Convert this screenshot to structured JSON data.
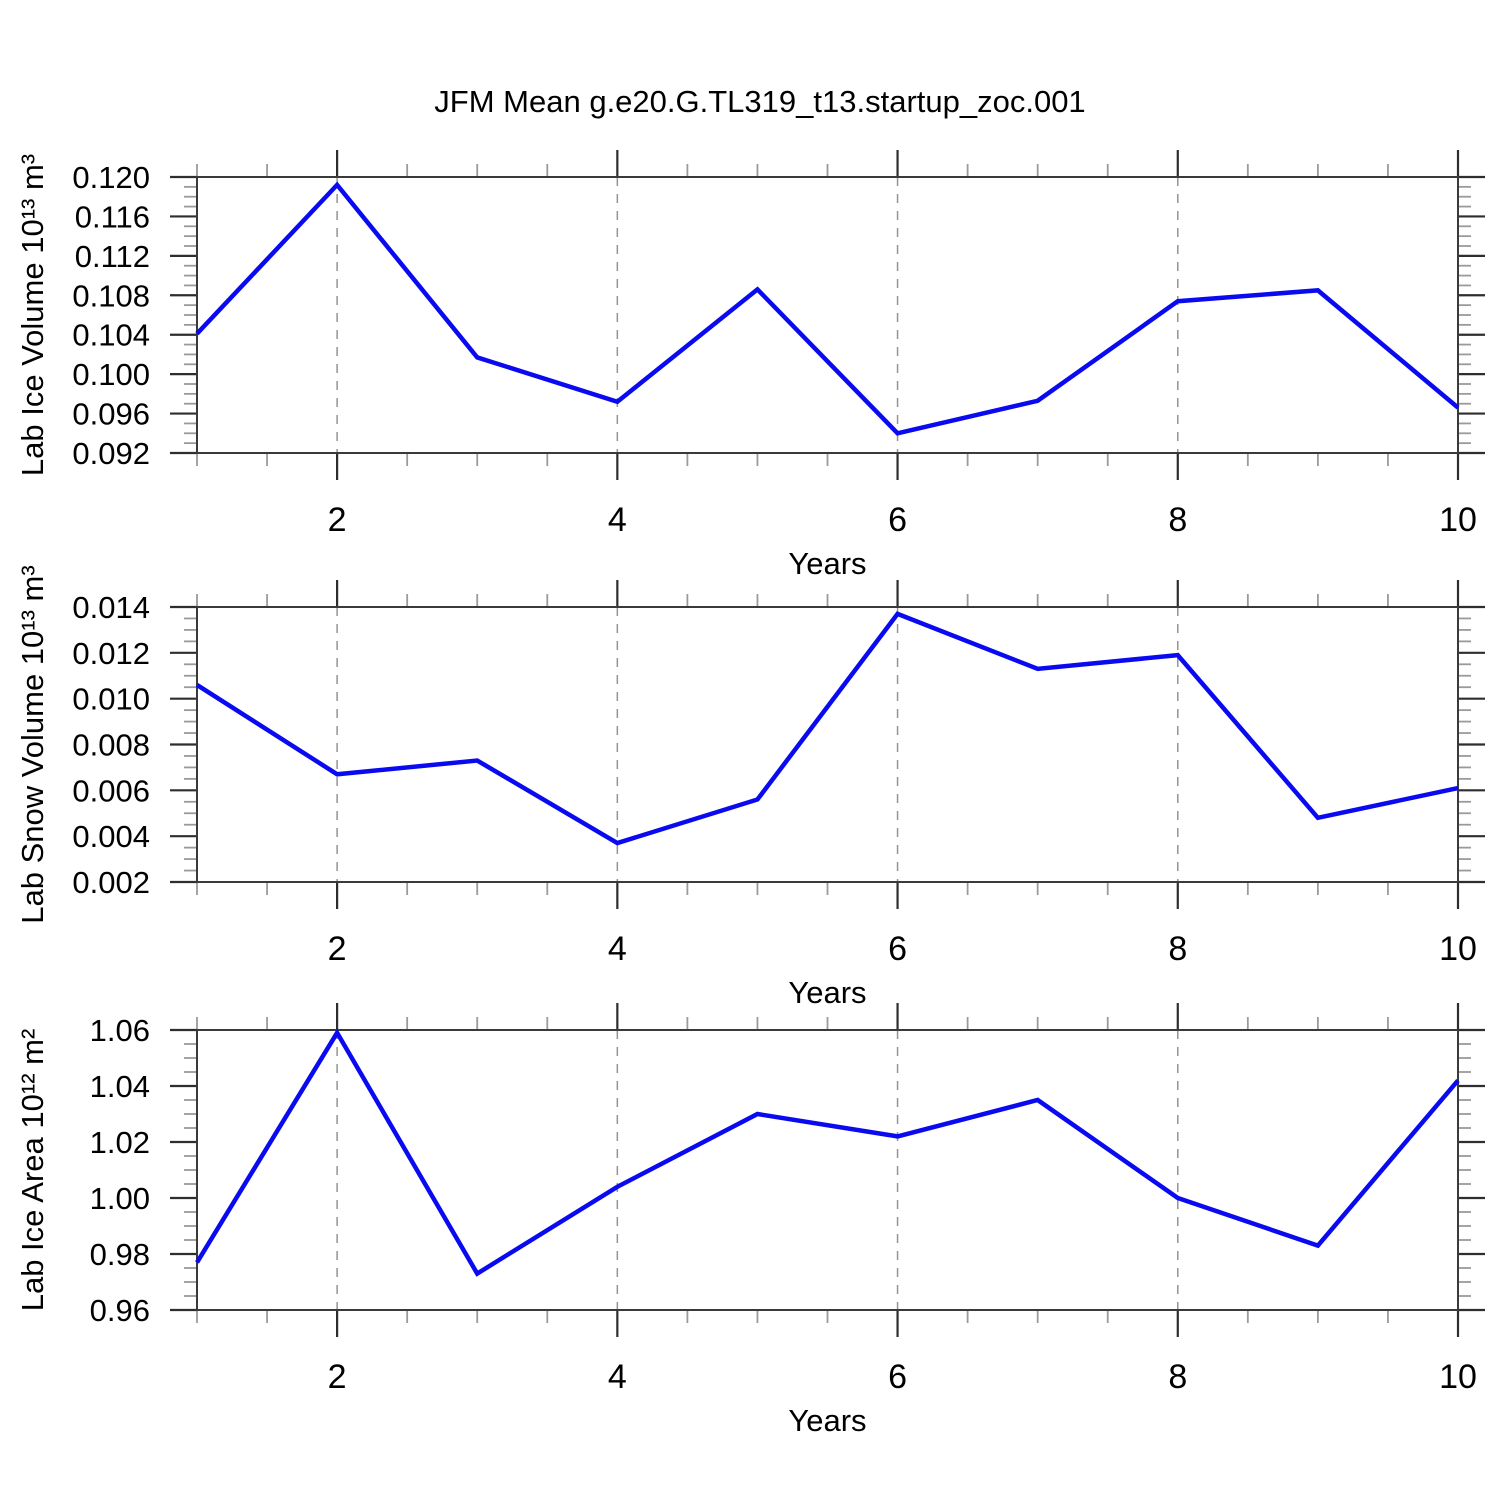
{
  "title": "JFM Mean g.e20.G.TL319_t13.startup_zoc.001",
  "xlabel": "Years",
  "colors": {
    "line": "#0a0af0",
    "grid": "#949494",
    "frame": "#3a3a3a",
    "major_tick": "#2e2e2e",
    "minor_tick": "#9a9a9a",
    "text": "#000000",
    "background": "#ffffff"
  },
  "chart_data": [
    {
      "type": "line",
      "id": "ice-volume",
      "ylabel": "Lab Ice Volume 10¹³ m³",
      "xlabel": "Years",
      "x": [
        1,
        2,
        3,
        4,
        5,
        6,
        7,
        8,
        9,
        10
      ],
      "values": [
        0.1041,
        0.1192,
        0.1017,
        0.0972,
        0.1086,
        0.094,
        0.0973,
        0.1074,
        0.1085,
        0.0966
      ],
      "xlim": [
        1,
        10
      ],
      "ylim": [
        0.092,
        0.12
      ],
      "xticks": [
        2,
        4,
        6,
        8,
        10
      ],
      "xtick_labels": [
        "2",
        "4",
        "6",
        "8",
        "10"
      ],
      "x_minor_step": 0.5,
      "ytick_values": [
        0.092,
        0.096,
        0.1,
        0.104,
        0.108,
        0.112,
        0.116,
        0.12
      ],
      "ytick_labels": [
        "0.092",
        "0.096",
        "0.100",
        "0.104",
        "0.108",
        "0.112",
        "0.116",
        "0.120"
      ],
      "y_minor_step": 0.001,
      "grid_x": [
        2,
        4,
        6,
        8
      ],
      "grid_on": true,
      "legend": "none"
    },
    {
      "type": "line",
      "id": "snow-volume",
      "ylabel": "Lab Snow Volume 10¹³ m³",
      "xlabel": "Years",
      "x": [
        1,
        2,
        3,
        4,
        5,
        6,
        7,
        8,
        9,
        10
      ],
      "values": [
        0.0106,
        0.0067,
        0.0073,
        0.0037,
        0.0056,
        0.0137,
        0.0113,
        0.0119,
        0.0048,
        0.0061
      ],
      "xlim": [
        1,
        10
      ],
      "ylim": [
        0.002,
        0.014
      ],
      "xticks": [
        2,
        4,
        6,
        8,
        10
      ],
      "xtick_labels": [
        "2",
        "4",
        "6",
        "8",
        "10"
      ],
      "x_minor_step": 0.5,
      "ytick_values": [
        0.002,
        0.004,
        0.006,
        0.008,
        0.01,
        0.012,
        0.014
      ],
      "ytick_labels": [
        "0.002",
        "0.004",
        "0.006",
        "0.008",
        "0.010",
        "0.012",
        "0.014"
      ],
      "y_minor_step": 0.0005,
      "grid_x": [
        2,
        4,
        6,
        8
      ],
      "grid_on": true,
      "legend": "none"
    },
    {
      "type": "line",
      "id": "ice-area",
      "ylabel": "Lab Ice Area 10¹² m²",
      "xlabel": "Years",
      "x": [
        1,
        2,
        3,
        4,
        5,
        6,
        7,
        8,
        9,
        10
      ],
      "values": [
        0.977,
        1.059,
        0.973,
        1.004,
        1.03,
        1.022,
        1.035,
        1.0,
        0.983,
        1.042
      ],
      "xlim": [
        1,
        10
      ],
      "ylim": [
        0.96,
        1.06
      ],
      "xticks": [
        2,
        4,
        6,
        8,
        10
      ],
      "xtick_labels": [
        "2",
        "4",
        "6",
        "8",
        "10"
      ],
      "x_minor_step": 0.5,
      "ytick_values": [
        0.96,
        0.98,
        1.0,
        1.02,
        1.04,
        1.06
      ],
      "ytick_labels": [
        "0.96",
        "0.98",
        "1.00",
        "1.02",
        "1.04",
        "1.06"
      ],
      "y_minor_step": 0.005,
      "grid_x": [
        2,
        4,
        6,
        8
      ],
      "grid_on": true,
      "legend": "none"
    }
  ]
}
